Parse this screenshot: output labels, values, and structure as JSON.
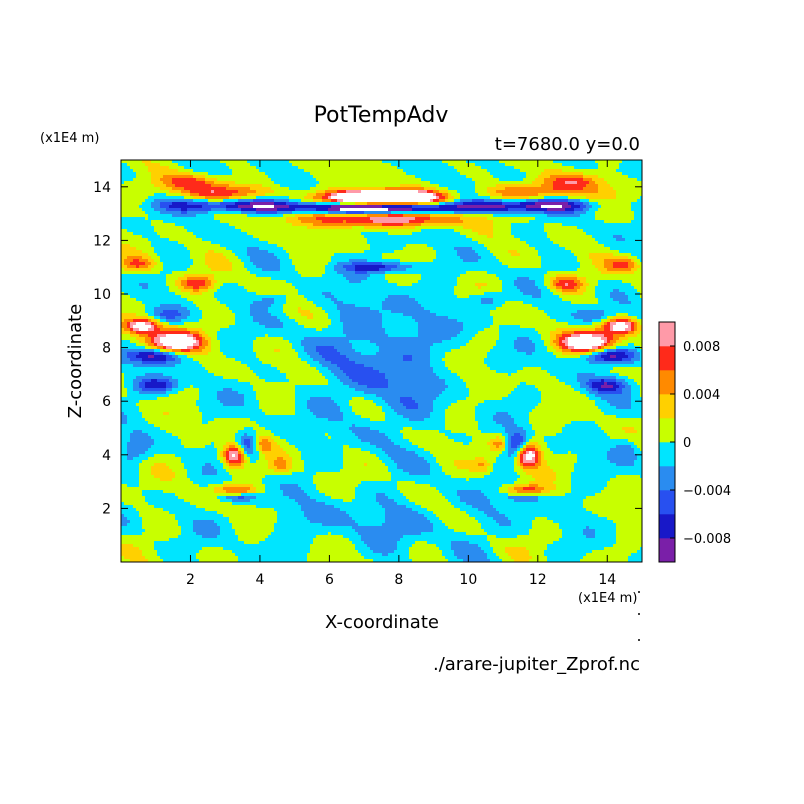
{
  "chart_data": {
    "type": "heatmap",
    "title": "PotTempAdv",
    "subtitle": "t=7680.0 y=0.0",
    "xlabel": "X-coordinate",
    "ylabel": "Z-coordinate",
    "x_unit": "(x1E4 m)",
    "y_unit": "(x1E4 m)",
    "xlim": [
      0,
      15
    ],
    "ylim": [
      0,
      15
    ],
    "x_ticks": [
      "2",
      "4",
      "6",
      "8",
      "10",
      "12",
      "14"
    ],
    "x_tick_values": [
      2,
      4,
      6,
      8,
      10,
      12,
      14
    ],
    "y_ticks": [
      "2",
      "4",
      "6",
      "8",
      "10",
      "12",
      "14"
    ],
    "y_tick_values": [
      2,
      4,
      6,
      8,
      10,
      12,
      14
    ],
    "colorbar": {
      "levels": [
        -0.01,
        -0.008,
        -0.006,
        -0.004,
        -0.002,
        0,
        0.002,
        0.004,
        0.006,
        0.008,
        0.01
      ],
      "colors": [
        "#7a1fa8",
        "#1818c8",
        "#2850f0",
        "#2a8cf0",
        "#00e5ff",
        "#c8ff00",
        "#ffd000",
        "#ff8a00",
        "#ff2a1a",
        "#ff9aa8"
      ],
      "tick_values": [
        0.008,
        0.004,
        0,
        -0.004,
        -0.008
      ],
      "tick_labels": [
        "0.008",
        "0.004",
        "0",
        "−0.004",
        "−0.008"
      ]
    },
    "symmetry": "mirror about x=7.5",
    "features": [
      {
        "x": 7.5,
        "z": 13.6,
        "sx": 1.4,
        "sz": 0.25,
        "v": 0.014
      },
      {
        "x": 7.5,
        "z": 13.2,
        "sx": 2.6,
        "sz": 0.2,
        "v": -0.007
      },
      {
        "x": 7.5,
        "z": 12.8,
        "sx": 2.2,
        "sz": 0.3,
        "v": 0.005
      },
      {
        "x": 3.0,
        "z": 13.8,
        "sx": 1.6,
        "sz": 0.3,
        "v": 0.006
      },
      {
        "x": 3.2,
        "z": 13.3,
        "sx": 1.8,
        "sz": 0.25,
        "v": -0.009
      },
      {
        "x": 2.0,
        "z": 14.2,
        "sx": 0.9,
        "sz": 0.3,
        "v": 0.006
      },
      {
        "x": 1.5,
        "z": 8.2,
        "sx": 0.8,
        "sz": 0.4,
        "v": 0.014
      },
      {
        "x": 0.6,
        "z": 8.8,
        "sx": 0.5,
        "sz": 0.3,
        "v": 0.012
      },
      {
        "x": 1.0,
        "z": 7.7,
        "sx": 0.8,
        "sz": 0.3,
        "v": -0.009
      },
      {
        "x": 1.0,
        "z": 6.6,
        "sx": 0.6,
        "sz": 0.3,
        "v": -0.007
      },
      {
        "x": 1.3,
        "z": 9.2,
        "sx": 0.6,
        "sz": 0.3,
        "v": -0.004
      },
      {
        "x": 2.2,
        "z": 10.4,
        "sx": 0.5,
        "sz": 0.3,
        "v": 0.007
      },
      {
        "x": 0.5,
        "z": 11.1,
        "sx": 0.5,
        "sz": 0.3,
        "v": 0.006
      },
      {
        "x": 3.3,
        "z": 4.0,
        "sx": 0.35,
        "sz": 0.45,
        "v": 0.014
      },
      {
        "x": 3.6,
        "z": 4.3,
        "sx": 0.35,
        "sz": 0.5,
        "v": -0.009
      },
      {
        "x": 3.3,
        "z": 2.7,
        "sx": 0.6,
        "sz": 0.2,
        "v": 0.006
      },
      {
        "x": 3.4,
        "z": 2.4,
        "sx": 0.5,
        "sz": 0.15,
        "v": -0.005
      },
      {
        "x": 4.1,
        "z": 4.4,
        "sx": 0.3,
        "sz": 0.3,
        "v": 0.005
      },
      {
        "x": 4.6,
        "z": 3.6,
        "sx": 0.3,
        "sz": 0.3,
        "v": 0.004
      },
      {
        "x": 7.2,
        "z": 11.0,
        "sx": 0.9,
        "sz": 0.2,
        "v": -0.004
      },
      {
        "x": 7.5,
        "z": 7.5,
        "sx": 1.6,
        "sz": 2.5,
        "v": -0.002
      },
      {
        "x": 7.5,
        "z": 1.5,
        "sx": 3.5,
        "sz": 1.0,
        "v": -0.001
      },
      {
        "x": 4.4,
        "z": 9.8,
        "sx": 0.5,
        "sz": 0.3,
        "v": -0.004
      },
      {
        "x": 5.0,
        "z": 8.8,
        "sx": 0.6,
        "sz": 0.4,
        "v": -0.001
      },
      {
        "x": 2.2,
        "z": 6.0,
        "sx": 0.5,
        "sz": 0.4,
        "v": -0.001
      },
      {
        "x": 0.4,
        "z": 4.2,
        "sx": 0.4,
        "sz": 0.5,
        "v": -0.003
      }
    ]
  },
  "footer": {
    "filename": "./arare-jupiter_Zprof.nc"
  }
}
